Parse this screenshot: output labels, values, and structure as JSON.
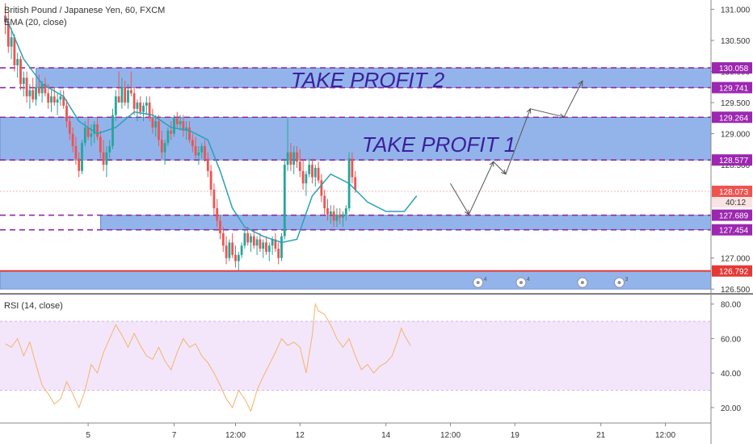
{
  "header": {
    "symbol_title": "British Pound / Japanese Yen, 60, FXCM",
    "indicator_label": "EMA (20, close)"
  },
  "rsi_panel": {
    "label": "RSI (14, close)",
    "band_upper": 70,
    "band_lower": 30
  },
  "colors": {
    "zone_fill": "#6f9be3",
    "zone_border": "#8e2aa3",
    "bull_candle": "#26a69a",
    "bear_candle": "#ef5350",
    "ema_line": "#2aa1b6",
    "rsi_line": "#f5b36a",
    "rsi_band": "#f3e6fb",
    "support_line": "#e53935",
    "annotation_text": "#3b1f9e",
    "current_price_bg": "#ef5350",
    "label_bg": "#9c27b0"
  },
  "annotations": {
    "take_profit_1": "TAKE PROFIT 1",
    "take_profit_2": "TAKE PROFIT 2"
  },
  "price_scale": {
    "ticks": [
      {
        "value": 131.0,
        "label": "131.000"
      },
      {
        "value": 130.5,
        "label": "130.500"
      },
      {
        "value": 130.0,
        "label": "130.000"
      },
      {
        "value": 129.5,
        "label": "129.500"
      },
      {
        "value": 129.0,
        "label": "129.000"
      },
      {
        "value": 128.5,
        "label": "128.500"
      },
      {
        "value": 127.0,
        "label": "127.000"
      },
      {
        "value": 126.5,
        "label": "126.500"
      }
    ],
    "level_labels": [
      {
        "value": 130.058,
        "label": "130.058",
        "kind": "level"
      },
      {
        "value": 129.741,
        "label": "129.741",
        "kind": "level"
      },
      {
        "value": 129.264,
        "label": "129.264",
        "kind": "level"
      },
      {
        "value": 128.577,
        "label": "128.577",
        "kind": "level"
      },
      {
        "value": 128.073,
        "label": "128.073",
        "kind": "current"
      },
      {
        "value": 127.689,
        "label": "127.689",
        "kind": "level"
      },
      {
        "value": 127.454,
        "label": "127.454",
        "kind": "level"
      },
      {
        "value": 126.792,
        "label": "126.792",
        "kind": "support"
      }
    ],
    "countdown": "40:12"
  },
  "rsi_scale": {
    "ticks": [
      {
        "value": 80,
        "label": "80.00"
      },
      {
        "value": 60,
        "label": "60.00"
      },
      {
        "value": 40,
        "label": "40.00"
      },
      {
        "value": 20,
        "label": "20.00"
      }
    ]
  },
  "time_axis": {
    "labels": [
      {
        "bar": 27,
        "label": "5"
      },
      {
        "bar": 55,
        "label": "7"
      },
      {
        "bar": 75,
        "label": "12:00"
      },
      {
        "bar": 96,
        "label": "12"
      },
      {
        "bar": 124,
        "label": "14"
      },
      {
        "bar": 145,
        "label": "12:00"
      },
      {
        "bar": 166,
        "label": "19"
      },
      {
        "bar": 194,
        "label": "21"
      },
      {
        "bar": 215,
        "label": "12:00"
      }
    ]
  },
  "event_icons": [
    {
      "bar": 154,
      "name": "earnings-event-icon",
      "count": "4"
    },
    {
      "bar": 168,
      "name": "earnings-event-icon",
      "count": "4"
    },
    {
      "bar": 188,
      "name": "economic-event-icon",
      "count": ""
    },
    {
      "bar": 200,
      "name": "economic-event-icon",
      "count": "3"
    }
  ],
  "chart_data": {
    "type": "candlestick",
    "title": "British Pound / Japanese Yen, 60, FXCM",
    "interval": "60",
    "ylim": [
      126.45,
      131.15
    ],
    "rsi_ylim": [
      12,
      85
    ],
    "zones": [
      {
        "name": "take-profit-2-zone",
        "from_bar": 10,
        "to_bar": 223,
        "low": 129.741,
        "high": 130.058
      },
      {
        "name": "take-profit-1-zone",
        "from_bar": 0,
        "to_bar": 223,
        "low": 128.577,
        "high": 129.264
      },
      {
        "name": "entry-zone",
        "from_bar": 31,
        "to_bar": 223,
        "low": 127.454,
        "high": 127.689
      },
      {
        "name": "support-zone",
        "from_bar": 0,
        "to_bar": 223,
        "low": 126.5,
        "high": 126.792
      }
    ],
    "support_level": 126.792,
    "current_price": 128.073,
    "projected_path": [
      {
        "bar": 145,
        "price": 128.2
      },
      {
        "bar": 151,
        "price": 127.7
      },
      {
        "bar": 159,
        "price": 128.55
      },
      {
        "bar": 163,
        "price": 128.35
      },
      {
        "bar": 171,
        "price": 129.4
      },
      {
        "bar": 182,
        "price": 129.27
      },
      {
        "bar": 188,
        "price": 129.85
      }
    ],
    "candles": [
      [
        130.9,
        131.1,
        130.6,
        130.8
      ],
      [
        130.8,
        130.95,
        130.3,
        130.4
      ],
      [
        130.4,
        130.7,
        130.2,
        130.55
      ],
      [
        130.55,
        130.6,
        130.0,
        130.1
      ],
      [
        130.1,
        130.3,
        129.9,
        130.2
      ],
      [
        130.2,
        130.25,
        129.7,
        129.8
      ],
      [
        129.8,
        130.0,
        129.6,
        129.9
      ],
      [
        129.9,
        130.0,
        129.5,
        129.6
      ],
      [
        129.6,
        129.8,
        129.4,
        129.7
      ],
      [
        129.7,
        129.9,
        129.5,
        129.55
      ],
      [
        129.55,
        129.8,
        129.45,
        129.75
      ],
      [
        129.75,
        129.95,
        129.6,
        129.65
      ],
      [
        129.65,
        129.85,
        129.5,
        129.8
      ],
      [
        129.8,
        129.9,
        129.6,
        129.65
      ],
      [
        129.65,
        129.8,
        129.4,
        129.5
      ],
      [
        129.5,
        129.7,
        129.35,
        129.6
      ],
      [
        129.6,
        129.75,
        129.45,
        129.5
      ],
      [
        129.5,
        129.65,
        129.3,
        129.55
      ],
      [
        129.55,
        129.7,
        129.45,
        129.6
      ],
      [
        129.6,
        129.7,
        129.4,
        129.45
      ],
      [
        129.45,
        129.55,
        129.1,
        129.2
      ],
      [
        129.2,
        129.3,
        128.9,
        129.0
      ],
      [
        129.0,
        129.1,
        128.7,
        128.8
      ],
      [
        128.8,
        128.95,
        128.5,
        128.6
      ],
      [
        128.6,
        128.7,
        128.3,
        128.4
      ],
      [
        128.4,
        128.9,
        128.35,
        128.85
      ],
      [
        128.85,
        129.2,
        128.8,
        129.1
      ],
      [
        129.1,
        129.25,
        128.9,
        128.95
      ],
      [
        128.95,
        129.15,
        128.8,
        129.0
      ],
      [
        129.0,
        129.2,
        128.85,
        129.15
      ],
      [
        129.15,
        129.25,
        128.9,
        128.95
      ],
      [
        128.95,
        129.05,
        128.6,
        128.7
      ],
      [
        128.7,
        128.9,
        128.4,
        128.5
      ],
      [
        128.5,
        128.8,
        128.3,
        128.7
      ],
      [
        128.7,
        128.9,
        128.6,
        128.8
      ],
      [
        128.8,
        129.4,
        128.75,
        129.3
      ],
      [
        129.3,
        129.7,
        129.2,
        129.6
      ],
      [
        129.6,
        130.0,
        129.5,
        129.5
      ],
      [
        129.5,
        129.9,
        129.4,
        129.75
      ],
      [
        129.75,
        129.85,
        129.45,
        129.5
      ],
      [
        129.5,
        129.8,
        129.4,
        129.7
      ],
      [
        129.7,
        130.0,
        129.6,
        129.65
      ],
      [
        129.65,
        129.75,
        129.3,
        129.4
      ],
      [
        129.4,
        129.55,
        129.2,
        129.5
      ],
      [
        129.5,
        129.6,
        129.3,
        129.35
      ],
      [
        129.35,
        129.5,
        129.2,
        129.45
      ],
      [
        129.45,
        129.6,
        129.3,
        129.5
      ],
      [
        129.5,
        129.6,
        129.2,
        129.25
      ],
      [
        129.25,
        129.4,
        129.0,
        129.1
      ],
      [
        129.1,
        129.3,
        128.95,
        129.2
      ],
      [
        129.2,
        129.3,
        128.8,
        128.9
      ],
      [
        128.9,
        129.05,
        128.6,
        128.7
      ],
      [
        128.7,
        128.9,
        128.5,
        128.85
      ],
      [
        128.85,
        129.1,
        128.8,
        129.05
      ],
      [
        129.05,
        129.2,
        128.9,
        129.0
      ],
      [
        129.0,
        129.3,
        128.95,
        129.25
      ],
      [
        129.25,
        129.35,
        129.1,
        129.15
      ],
      [
        129.15,
        129.3,
        129.05,
        129.2
      ],
      [
        129.2,
        129.3,
        128.95,
        129.05
      ],
      [
        129.05,
        129.2,
        128.9,
        129.1
      ],
      [
        129.1,
        129.2,
        128.85,
        128.9
      ],
      [
        128.9,
        129.0,
        128.7,
        128.8
      ],
      [
        128.8,
        128.95,
        128.6,
        128.65
      ],
      [
        128.65,
        128.8,
        128.5,
        128.7
      ],
      [
        128.7,
        128.85,
        128.6,
        128.8
      ],
      [
        128.8,
        128.9,
        128.55,
        128.6
      ],
      [
        128.6,
        128.7,
        128.3,
        128.4
      ],
      [
        128.4,
        128.5,
        128.0,
        128.1
      ],
      [
        128.1,
        128.2,
        127.7,
        127.8
      ],
      [
        127.8,
        127.95,
        127.5,
        127.6
      ],
      [
        127.6,
        127.7,
        127.3,
        127.4
      ],
      [
        127.4,
        127.5,
        127.1,
        127.2
      ],
      [
        127.2,
        127.35,
        126.9,
        127.0
      ],
      [
        127.0,
        127.3,
        126.95,
        127.25
      ],
      [
        127.25,
        127.4,
        127.0,
        127.05
      ],
      [
        127.05,
        127.2,
        126.85,
        126.95
      ],
      [
        126.95,
        127.1,
        126.8,
        127.05
      ],
      [
        127.05,
        127.25,
        127.0,
        127.2
      ],
      [
        127.2,
        127.45,
        127.15,
        127.4
      ],
      [
        127.4,
        127.5,
        127.2,
        127.25
      ],
      [
        127.25,
        127.4,
        127.1,
        127.35
      ],
      [
        127.35,
        127.45,
        127.15,
        127.2
      ],
      [
        127.2,
        127.35,
        127.05,
        127.3
      ],
      [
        127.3,
        127.4,
        127.1,
        127.15
      ],
      [
        127.15,
        127.3,
        127.0,
        127.25
      ],
      [
        127.25,
        127.35,
        127.05,
        127.1
      ],
      [
        127.1,
        127.25,
        126.95,
        127.2
      ],
      [
        127.2,
        127.35,
        127.05,
        127.3
      ],
      [
        127.3,
        127.4,
        127.1,
        127.15
      ],
      [
        127.15,
        127.25,
        126.9,
        127.0
      ],
      [
        127.0,
        127.4,
        126.95,
        127.35
      ],
      [
        127.35,
        128.6,
        127.3,
        128.5
      ],
      [
        128.5,
        129.25,
        128.4,
        128.7
      ],
      [
        128.7,
        128.85,
        128.4,
        128.5
      ],
      [
        128.5,
        128.8,
        128.35,
        128.7
      ],
      [
        128.7,
        128.8,
        128.45,
        128.55
      ],
      [
        128.55,
        128.75,
        128.3,
        128.4
      ],
      [
        128.4,
        128.6,
        128.1,
        128.2
      ],
      [
        128.2,
        128.4,
        128.0,
        128.35
      ],
      [
        128.35,
        128.6,
        128.3,
        128.5
      ],
      [
        128.5,
        128.6,
        128.2,
        128.3
      ],
      [
        128.3,
        128.5,
        128.15,
        128.45
      ],
      [
        128.45,
        128.55,
        128.2,
        128.25
      ],
      [
        128.25,
        128.35,
        127.9,
        128.0
      ],
      [
        128.0,
        128.1,
        127.7,
        127.8
      ],
      [
        127.8,
        127.95,
        127.6,
        127.7
      ],
      [
        127.7,
        127.85,
        127.55,
        127.75
      ],
      [
        127.75,
        127.85,
        127.5,
        127.6
      ],
      [
        127.6,
        127.8,
        127.5,
        127.7
      ],
      [
        127.7,
        127.8,
        127.55,
        127.65
      ],
      [
        127.65,
        127.75,
        127.5,
        127.7
      ],
      [
        127.7,
        127.85,
        127.6,
        127.8
      ],
      [
        127.8,
        128.7,
        127.75,
        128.6
      ],
      [
        128.6,
        128.7,
        128.2,
        128.3
      ],
      [
        128.3,
        128.4,
        128.05,
        128.1
      ]
    ],
    "ema": [
      [
        0,
        130.9
      ],
      [
        6,
        130.2
      ],
      [
        12,
        129.8
      ],
      [
        19,
        129.6
      ],
      [
        24,
        129.2
      ],
      [
        30,
        129.0
      ],
      [
        36,
        129.1
      ],
      [
        42,
        129.35
      ],
      [
        48,
        129.3
      ],
      [
        54,
        129.1
      ],
      [
        60,
        129.05
      ],
      [
        66,
        128.9
      ],
      [
        70,
        128.4
      ],
      [
        74,
        127.8
      ],
      [
        78,
        127.5
      ],
      [
        84,
        127.35
      ],
      [
        90,
        127.25
      ],
      [
        95,
        127.3
      ],
      [
        100,
        128.0
      ],
      [
        106,
        128.35
      ],
      [
        112,
        128.2
      ],
      [
        118,
        127.9
      ],
      [
        124,
        127.75
      ],
      [
        130,
        127.75
      ],
      [
        134,
        128.0
      ]
    ],
    "rsi": [
      [
        0,
        57
      ],
      [
        2,
        55
      ],
      [
        4,
        60
      ],
      [
        6,
        50
      ],
      [
        8,
        58
      ],
      [
        10,
        45
      ],
      [
        12,
        33
      ],
      [
        14,
        28
      ],
      [
        16,
        22
      ],
      [
        18,
        25
      ],
      [
        20,
        35
      ],
      [
        22,
        28
      ],
      [
        24,
        20
      ],
      [
        26,
        30
      ],
      [
        28,
        45
      ],
      [
        30,
        40
      ],
      [
        32,
        52
      ],
      [
        34,
        60
      ],
      [
        36,
        68
      ],
      [
        38,
        62
      ],
      [
        40,
        55
      ],
      [
        42,
        63
      ],
      [
        44,
        56
      ],
      [
        46,
        50
      ],
      [
        48,
        48
      ],
      [
        50,
        55
      ],
      [
        52,
        47
      ],
      [
        54,
        42
      ],
      [
        56,
        52
      ],
      [
        58,
        60
      ],
      [
        60,
        55
      ],
      [
        62,
        57
      ],
      [
        64,
        50
      ],
      [
        66,
        46
      ],
      [
        68,
        40
      ],
      [
        70,
        33
      ],
      [
        72,
        25
      ],
      [
        74,
        20
      ],
      [
        76,
        30
      ],
      [
        78,
        25
      ],
      [
        80,
        18
      ],
      [
        82,
        30
      ],
      [
        84,
        38
      ],
      [
        86,
        45
      ],
      [
        88,
        52
      ],
      [
        90,
        60
      ],
      [
        92,
        56
      ],
      [
        94,
        58
      ],
      [
        96,
        55
      ],
      [
        98,
        40
      ],
      [
        100,
        62
      ],
      [
        101,
        80
      ],
      [
        102,
        76
      ],
      [
        104,
        74
      ],
      [
        106,
        68
      ],
      [
        108,
        60
      ],
      [
        110,
        55
      ],
      [
        112,
        60
      ],
      [
        114,
        50
      ],
      [
        116,
        42
      ],
      [
        118,
        45
      ],
      [
        120,
        40
      ],
      [
        122,
        44
      ],
      [
        124,
        46
      ],
      [
        126,
        50
      ],
      [
        128,
        60
      ],
      [
        129,
        66
      ],
      [
        130,
        62
      ],
      [
        132,
        56
      ]
    ]
  }
}
